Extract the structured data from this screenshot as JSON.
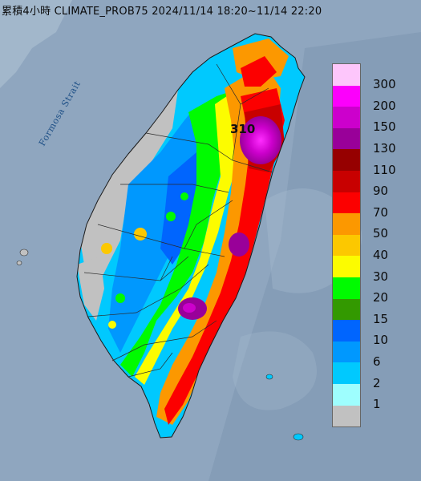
{
  "title": "累積4小時 CLIMATE_PROB75 2024/11/14 18:20~11/14 22:20",
  "strait_label": "Formosa Strait",
  "max_label": "310",
  "legend": {
    "levels": [
      "300",
      "200",
      "150",
      "130",
      "110",
      "90",
      "70",
      "50",
      "40",
      "30",
      "20",
      "15",
      "10",
      "6",
      "2",
      "1"
    ],
    "colors": [
      "#fdc6fb",
      "#fc00fc",
      "#cc00cc",
      "#990099",
      "#960000",
      "#c80000",
      "#fc0000",
      "#fc9800",
      "#fcc800",
      "#fcfc00",
      "#00fb00",
      "#339900",
      "#0065fe",
      "#0098fe",
      "#00c9fe",
      "#9efefe",
      "#c1c1c1"
    ]
  },
  "colors": {
    "sea": "#8fa6bf",
    "gray": "#c1c1c1"
  }
}
